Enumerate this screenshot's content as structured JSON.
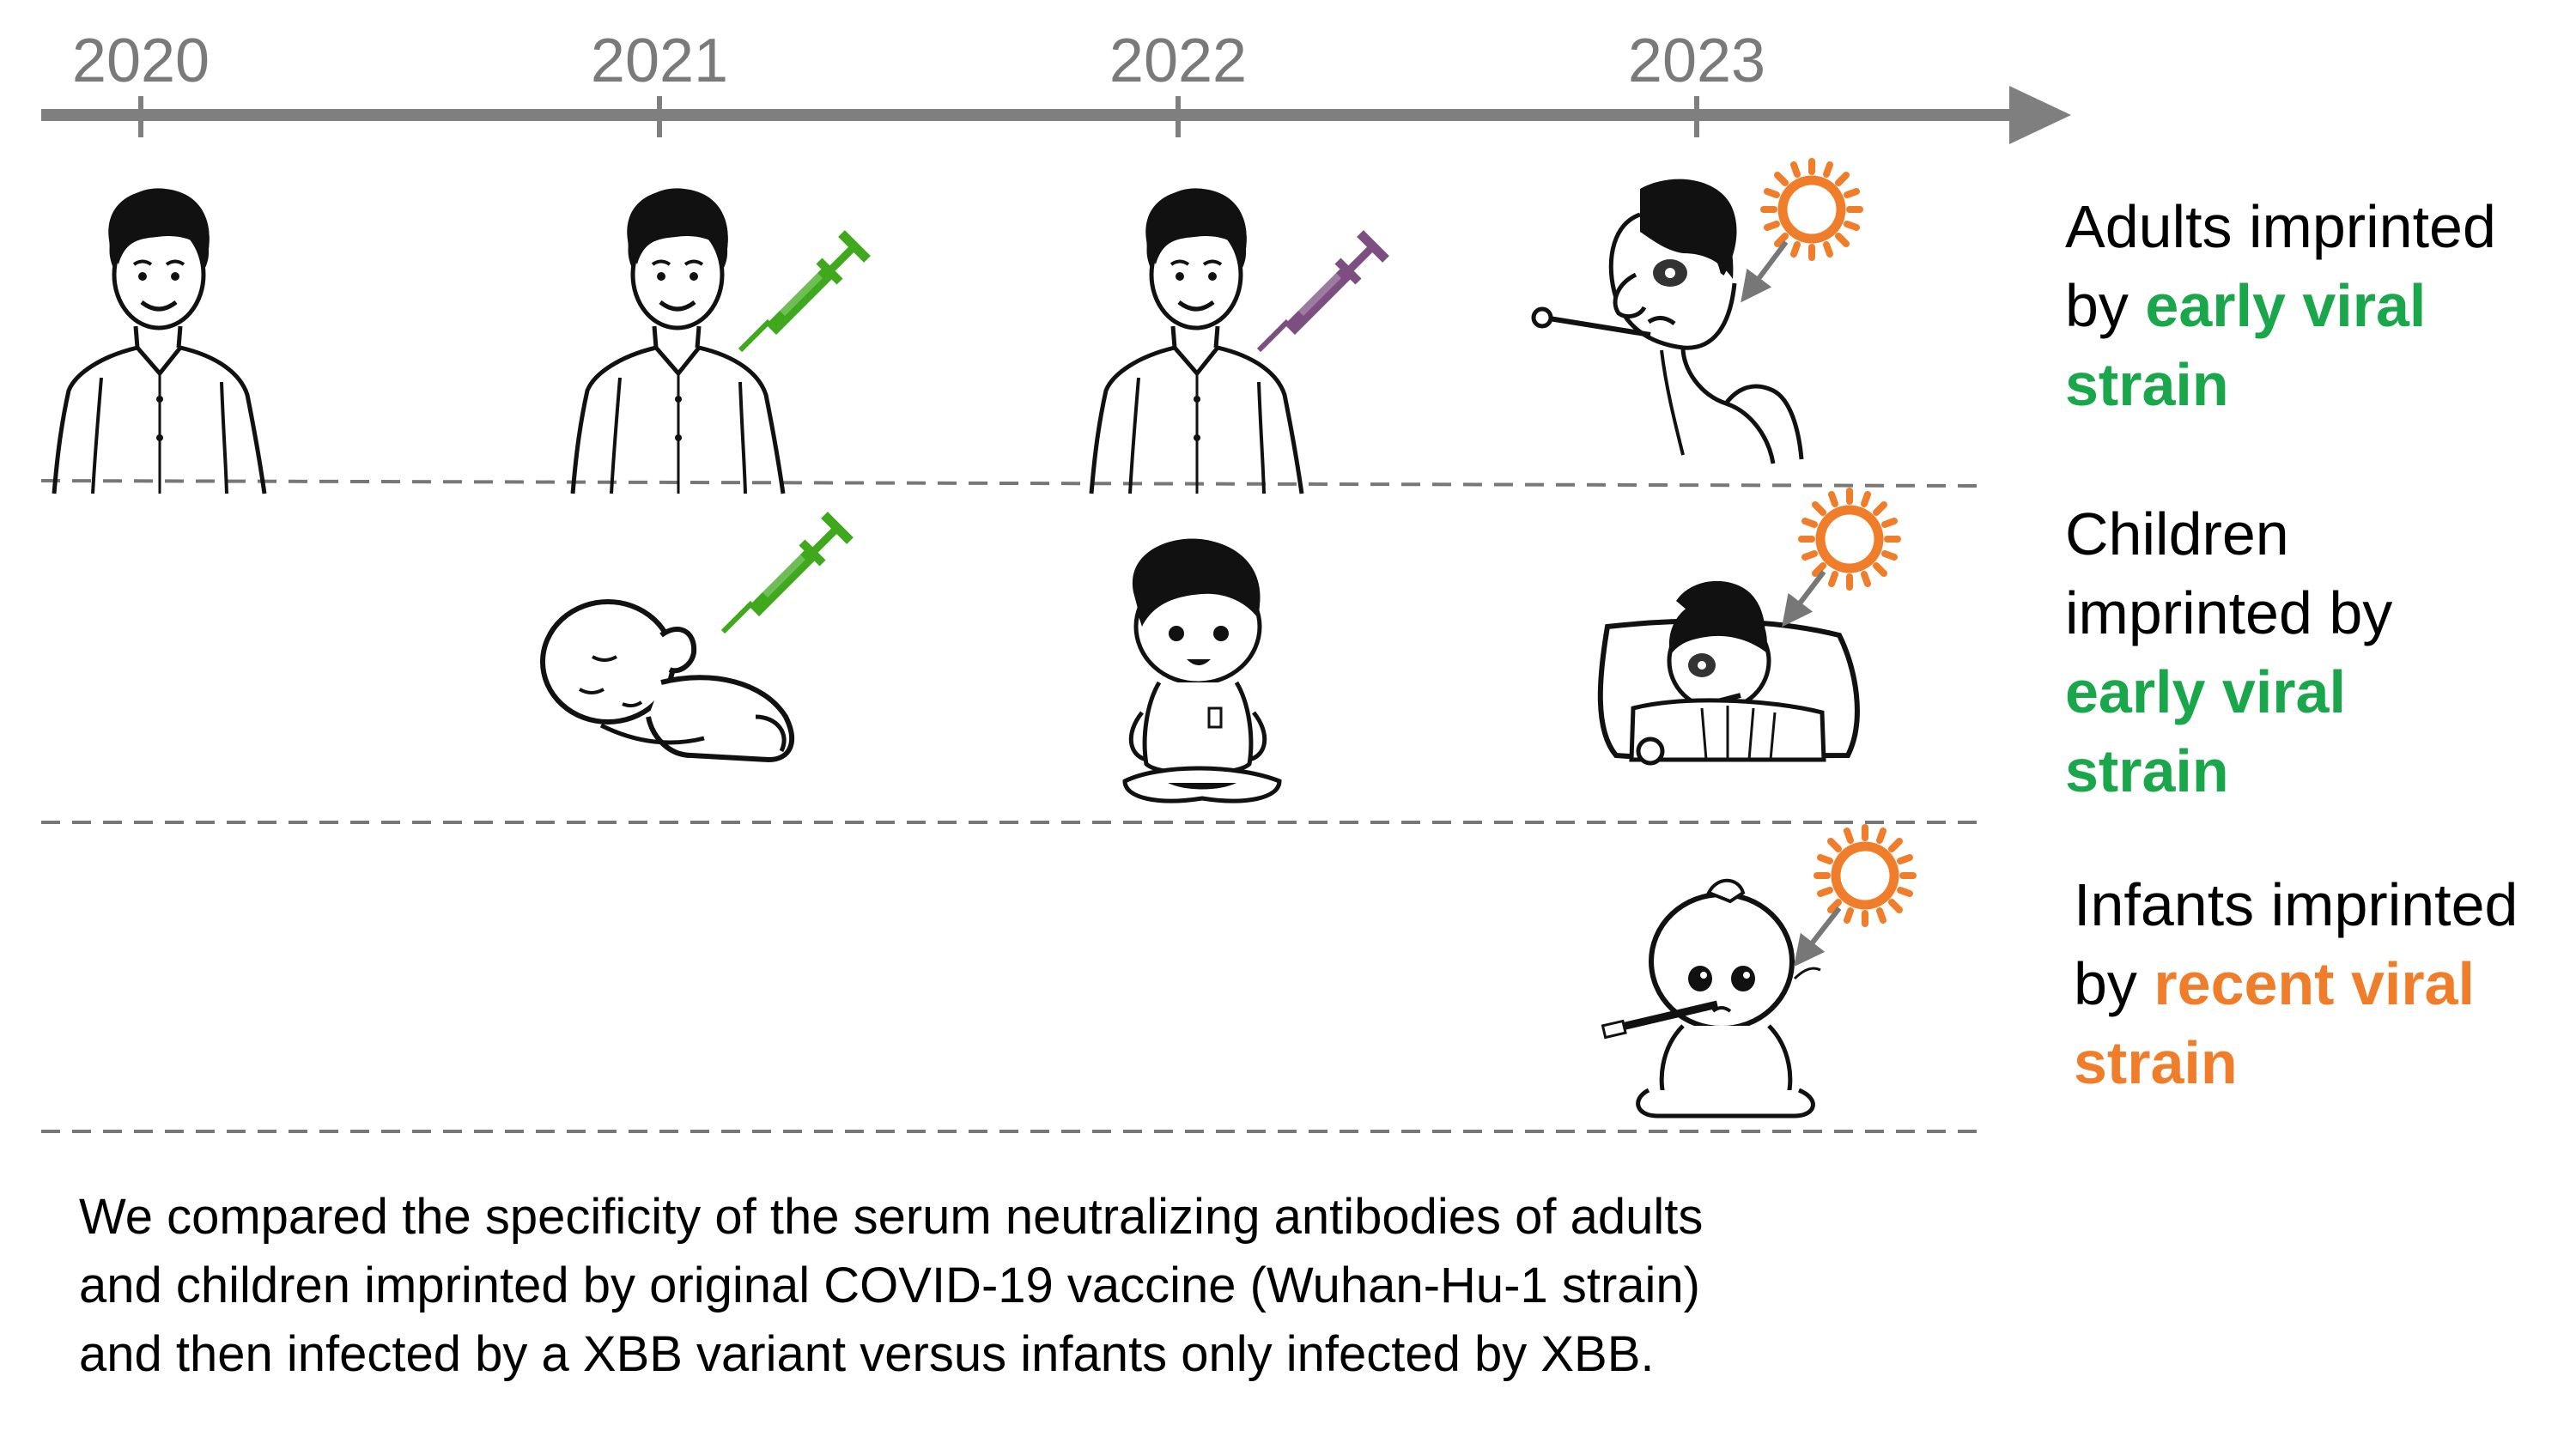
{
  "timeline": {
    "years": [
      "2020",
      "2021",
      "2022",
      "2023"
    ]
  },
  "rows": [
    {
      "label_lines": [
        [
          {
            "text": "Adults imprinted",
            "hl": false
          }
        ],
        [
          {
            "text": "by ",
            "hl": false
          },
          {
            "text": "early viral",
            "hl": true
          }
        ],
        [
          {
            "text": "strain",
            "hl": true
          }
        ]
      ],
      "highlight_color": "#1aa64a"
    },
    {
      "label_lines": [
        [
          {
            "text": "Children",
            "hl": false
          }
        ],
        [
          {
            "text": "imprinted by",
            "hl": false
          }
        ],
        [
          {
            "text": "early viral",
            "hl": true
          }
        ],
        [
          {
            "text": "strain",
            "hl": true
          }
        ]
      ],
      "highlight_color": "#1aa64a"
    },
    {
      "label_lines": [
        [
          {
            "text": "Infants imprinted",
            "hl": false
          }
        ],
        [
          {
            "text": "by ",
            "hl": false
          },
          {
            "text": "recent viral",
            "hl": true
          }
        ],
        [
          {
            "text": "strain",
            "hl": true
          }
        ]
      ],
      "highlight_color": "#f07d2a"
    }
  ],
  "caption": {
    "lines": [
      "We compared the specificity of the serum neutralizing antibodies of adults",
      "and children imprinted by original COVID-19 vaccine (Wuhan-Hu-1 strain)",
      "and then infected by a XBB variant versus infants only infected by XBB."
    ]
  },
  "colors": {
    "axis": "#7f7f7f",
    "syringe_early": "#3fa81c",
    "syringe_booster": "#7d4f80",
    "virus": "#f07d2a",
    "dash": "#777777"
  },
  "icons": {
    "adult": "adult-person-icon",
    "sick_adult": "sick-adult-icon",
    "newborn": "sleeping-newborn-icon",
    "toddler": "toddler-icon",
    "sick_child": "sick-child-in-bed-icon",
    "sick_infant": "sick-infant-icon",
    "syringe": "syringe-icon",
    "virus": "virus-icon"
  }
}
